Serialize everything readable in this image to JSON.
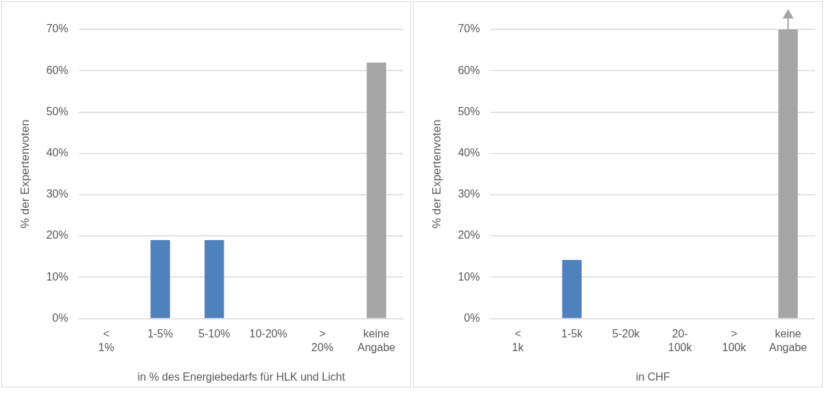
{
  "chart_data": [
    {
      "type": "bar",
      "xlabel": "in % des Energiebedarfs für HLK und Licht",
      "ylabel": "% der Expertenvoten",
      "categories": [
        "< 1%",
        "1-5%",
        "5-10%",
        "10-20%",
        "> 20%",
        "keine Angabe"
      ],
      "values": [
        0,
        19,
        19,
        0,
        0,
        62
      ],
      "colors": [
        "#4f81bd",
        "#4f81bd",
        "#4f81bd",
        "#4f81bd",
        "#4f81bd",
        "#a5a5a5"
      ],
      "ylim": [
        0,
        70
      ],
      "yticks": [
        {
          "value": 0,
          "label": "0%"
        },
        {
          "value": 10,
          "label": "10%"
        },
        {
          "value": 20,
          "label": "20%"
        },
        {
          "value": 30,
          "label": "30%"
        },
        {
          "value": 40,
          "label": "40%"
        },
        {
          "value": 50,
          "label": "50%"
        },
        {
          "value": 60,
          "label": "60%"
        },
        {
          "value": 70,
          "label": "70%"
        }
      ],
      "grid": "y",
      "legend": false
    },
    {
      "type": "bar",
      "xlabel": "in CHF",
      "ylabel": "% der Expertenvoten",
      "categories": [
        "< 1k",
        "1-5k",
        "5-20k",
        "20-100k",
        "> 100k",
        "keine Angabe"
      ],
      "values": [
        0,
        14.2,
        0,
        0,
        0,
        70
      ],
      "colors": [
        "#4f81bd",
        "#4f81bd",
        "#4f81bd",
        "#4f81bd",
        "#4f81bd",
        "#a5a5a5"
      ],
      "ylim": [
        0,
        70
      ],
      "yticks": [
        {
          "value": 0,
          "label": "0%"
        },
        {
          "value": 10,
          "label": "10%"
        },
        {
          "value": 20,
          "label": "20%"
        },
        {
          "value": 30,
          "label": "30%"
        },
        {
          "value": 40,
          "label": "40%"
        },
        {
          "value": 50,
          "label": "50%"
        },
        {
          "value": 60,
          "label": "60%"
        },
        {
          "value": 70,
          "label": "70%"
        }
      ],
      "grid": "y",
      "legend": false
    }
  ]
}
